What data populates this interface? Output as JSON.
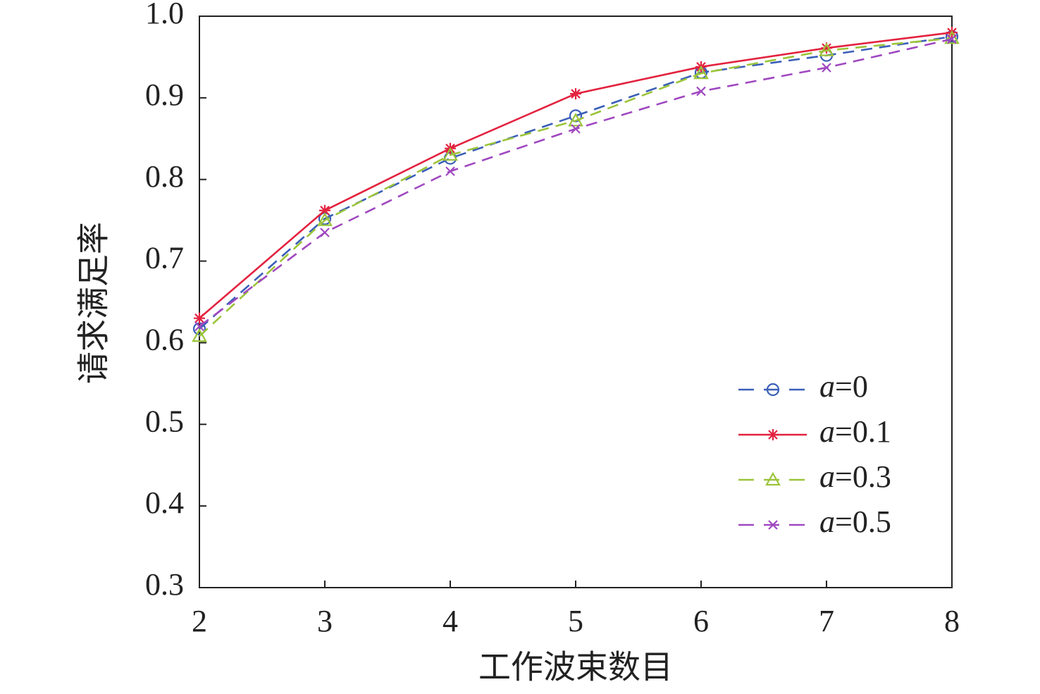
{
  "chart_data": {
    "type": "line",
    "x_label": "工作波束数目",
    "y_label": "请求满足率",
    "x": [
      2,
      3,
      4,
      5,
      6,
      7,
      8
    ],
    "xlim": [
      2,
      8
    ],
    "xticks": [
      2,
      3,
      4,
      5,
      6,
      7,
      8
    ],
    "ylim": [
      0.3,
      1.0
    ],
    "yticks": [
      0.3,
      0.4,
      0.5,
      0.6,
      0.7,
      0.8,
      0.9,
      {
        "value": 1.0,
        "label": "1.0"
      }
    ],
    "legend_position": "lower right",
    "series": [
      {
        "name": "a=0",
        "color": "#3a5fb8",
        "line_style": "dashed",
        "marker": "circle",
        "values": [
          0.617,
          0.752,
          0.826,
          0.878,
          0.931,
          0.952,
          0.975
        ]
      },
      {
        "name": "a=0.1",
        "color": "#e3223f",
        "line_style": "solid",
        "marker": "star",
        "values": [
          0.63,
          0.762,
          0.838,
          0.905,
          0.938,
          0.961,
          0.98
        ]
      },
      {
        "name": "a=0.3",
        "color": "#9cc43a",
        "line_style": "dashed",
        "marker": "triangle",
        "values": [
          0.608,
          0.75,
          0.83,
          0.872,
          0.93,
          0.958,
          0.973
        ]
      },
      {
        "name": "a=0.5",
        "color": "#a048c0",
        "line_style": "dashed",
        "marker": "x",
        "values": [
          0.62,
          0.735,
          0.81,
          0.862,
          0.908,
          0.937,
          0.972
        ]
      }
    ]
  }
}
